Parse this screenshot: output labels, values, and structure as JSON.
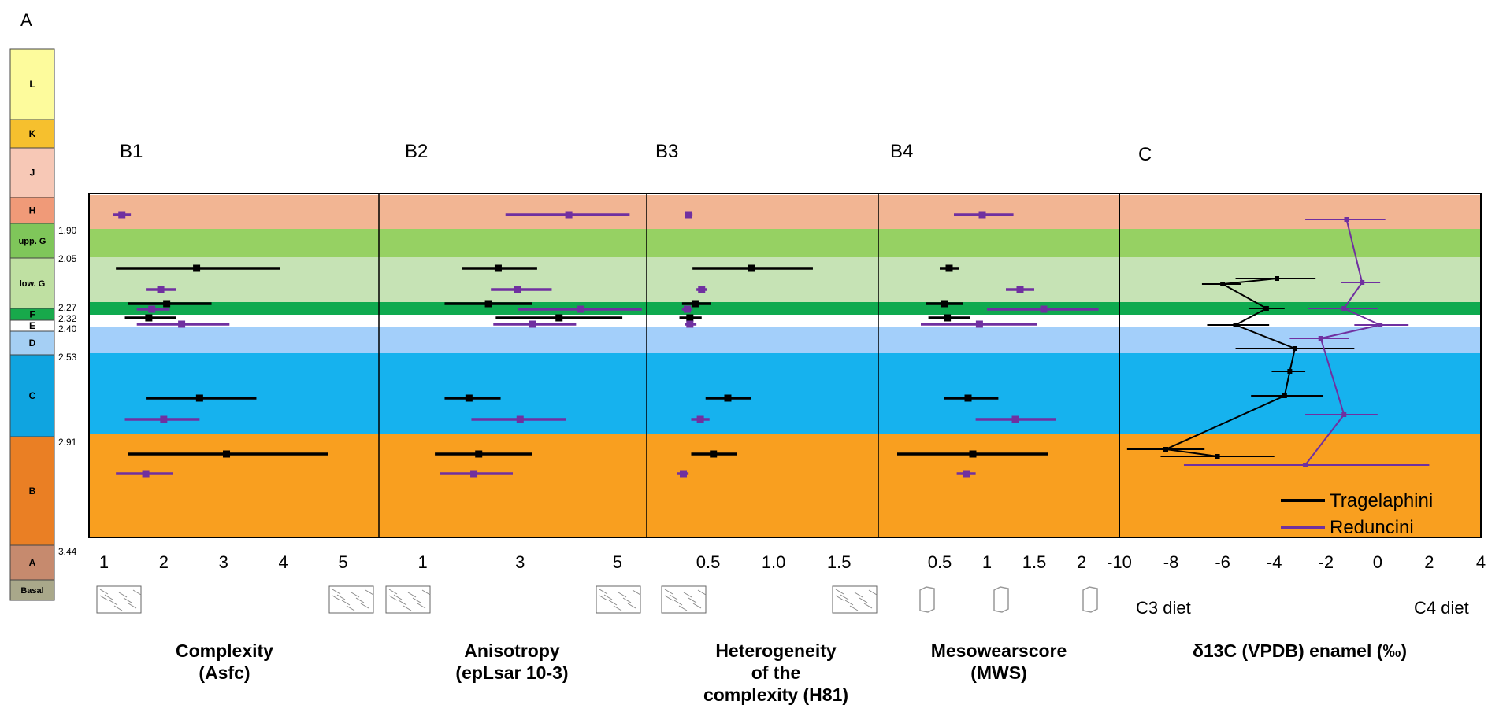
{
  "figure_label": "A",
  "strat_column": [
    {
      "unit": "L",
      "color": "#fdfb9c"
    },
    {
      "unit": "K",
      "color": "#f6c02e"
    },
    {
      "unit": "J",
      "color": "#f7c8b6"
    },
    {
      "unit": "H",
      "color": "#f09a78"
    },
    {
      "unit": "upp. G",
      "color": "#7fc65a"
    },
    {
      "unit": "low. G",
      "color": "#bfe0a2"
    },
    {
      "unit": "F",
      "color": "#18a94b"
    },
    {
      "unit": "E",
      "color": "#ffffff"
    },
    {
      "unit": "D",
      "color": "#a5cff4"
    },
    {
      "unit": "C",
      "color": "#0fa4e0"
    },
    {
      "unit": "B",
      "color": "#ea7f24"
    },
    {
      "unit": "A",
      "color": "#c68a6e"
    },
    {
      "unit": "Basal",
      "color": "#a9a88a"
    }
  ],
  "age_labels": [
    "1.90",
    "2.05",
    "2.27",
    "2.32",
    "2.40",
    "2.53",
    "2.91",
    "3.44"
  ],
  "bands": [
    {
      "member": "H",
      "color": "#f2b593"
    },
    {
      "member": "upp. G",
      "color": "#96d163"
    },
    {
      "member": "low. G",
      "color": "#c6e3b5"
    },
    {
      "member": "F",
      "color": "#0faa4f"
    },
    {
      "member": "E",
      "color": "#ffffff"
    },
    {
      "member": "D",
      "color": "#a3cffa"
    },
    {
      "member": "C",
      "color": "#16b2ee"
    },
    {
      "member": "B",
      "color": "#f99f1f"
    }
  ],
  "series_colors": {
    "Tragelaphini": "#000000",
    "Reduncini": "#7030a0"
  },
  "legend": {
    "items": [
      "Tragelaphini",
      "Reduncini"
    ]
  },
  "chart_data": [
    {
      "panel": "B1",
      "type": "scatter",
      "xlabel": "Complexity\n(Asfc)",
      "xticks": [
        "1",
        "2",
        "3",
        "4",
        "5"
      ],
      "xlim": [
        0.75,
        5.6
      ],
      "series": [
        {
          "name": "Tragelaphini",
          "points": [
            {
              "member": "low. G",
              "x": 2.55,
              "xmin": 1.2,
              "xmax": 3.95
            },
            {
              "member": "F",
              "x": 2.05,
              "xmin": 1.4,
              "xmax": 2.8
            },
            {
              "member": "E",
              "x": 1.75,
              "xmin": 1.35,
              "xmax": 2.2
            },
            {
              "member": "C",
              "x": 2.6,
              "xmin": 1.7,
              "xmax": 3.55
            },
            {
              "member": "B",
              "x": 3.05,
              "xmin": 1.4,
              "xmax": 4.75
            }
          ]
        },
        {
          "name": "Reduncini",
          "points": [
            {
              "member": "H",
              "x": 1.3,
              "xmin": 1.15,
              "xmax": 1.45
            },
            {
              "member": "low. G",
              "x": 1.95,
              "xmin": 1.7,
              "xmax": 2.2
            },
            {
              "member": "F",
              "x": 1.8,
              "xmin": 1.55,
              "xmax": 2.1
            },
            {
              "member": "E",
              "x": 2.3,
              "xmin": 1.55,
              "xmax": 3.1
            },
            {
              "member": "C",
              "x": 2.0,
              "xmin": 1.35,
              "xmax": 2.6
            },
            {
              "member": "B",
              "x": 1.7,
              "xmin": 1.2,
              "xmax": 2.15
            }
          ]
        }
      ]
    },
    {
      "panel": "B2",
      "type": "scatter",
      "xlabel": "Anisotropy\n(epLsar 10-3)",
      "xticks": [
        "1",
        "3",
        "5"
      ],
      "xlim": [
        0.1,
        5.6
      ],
      "series": [
        {
          "name": "Tragelaphini",
          "points": [
            {
              "member": "low. G",
              "x": 2.55,
              "xmin": 1.8,
              "xmax": 3.35
            },
            {
              "member": "F",
              "x": 2.35,
              "xmin": 1.45,
              "xmax": 3.25
            },
            {
              "member": "E",
              "x": 3.8,
              "xmin": 2.5,
              "xmax": 5.1
            },
            {
              "member": "C",
              "x": 1.95,
              "xmin": 1.45,
              "xmax": 2.6
            },
            {
              "member": "B",
              "x": 2.15,
              "xmin": 1.25,
              "xmax": 3.25
            }
          ]
        },
        {
          "name": "Reduncini",
          "points": [
            {
              "member": "H",
              "x": 4.0,
              "xmin": 2.7,
              "xmax": 5.25
            },
            {
              "member": "low. G",
              "x": 2.95,
              "xmin": 2.4,
              "xmax": 3.65
            },
            {
              "member": "F",
              "x": 4.25,
              "xmin": 2.95,
              "xmax": 5.5
            },
            {
              "member": "E",
              "x": 3.25,
              "xmin": 2.45,
              "xmax": 4.15
            },
            {
              "member": "C",
              "x": 3.0,
              "xmin": 2.0,
              "xmax": 3.95
            },
            {
              "member": "B",
              "x": 2.05,
              "xmin": 1.35,
              "xmax": 2.85
            }
          ]
        }
      ]
    },
    {
      "panel": "B3",
      "type": "scatter",
      "xlabel": "Heterogeneity\nof the\ncomplexity (H81)",
      "xticks": [
        "0.5",
        "1.0",
        "1.5"
      ],
      "xlim": [
        0.03,
        1.8
      ],
      "series": [
        {
          "name": "Tragelaphini",
          "points": [
            {
              "member": "low. G",
              "x": 0.83,
              "xmin": 0.38,
              "xmax": 1.3
            },
            {
              "member": "F",
              "x": 0.4,
              "xmin": 0.3,
              "xmax": 0.52
            },
            {
              "member": "E",
              "x": 0.36,
              "xmin": 0.28,
              "xmax": 0.45
            },
            {
              "member": "C",
              "x": 0.65,
              "xmin": 0.48,
              "xmax": 0.83
            },
            {
              "member": "B",
              "x": 0.54,
              "xmin": 0.37,
              "xmax": 0.72
            }
          ]
        },
        {
          "name": "Reduncini",
          "points": [
            {
              "member": "H",
              "x": 0.35,
              "xmin": 0.32,
              "xmax": 0.38
            },
            {
              "member": "low. G",
              "x": 0.45,
              "xmin": 0.41,
              "xmax": 0.49
            },
            {
              "member": "F",
              "x": 0.34,
              "xmin": 0.3,
              "xmax": 0.38
            },
            {
              "member": "E",
              "x": 0.36,
              "xmin": 0.32,
              "xmax": 0.41
            },
            {
              "member": "C",
              "x": 0.44,
              "xmin": 0.37,
              "xmax": 0.51
            },
            {
              "member": "B",
              "x": 0.31,
              "xmin": 0.26,
              "xmax": 0.35
            }
          ]
        }
      ]
    },
    {
      "panel": "B4",
      "type": "scatter",
      "xlabel": "Mesowearscore\n(MWS)",
      "xticks": [
        "0.5",
        "1",
        "1.5",
        "2"
      ],
      "xlim": [
        -0.15,
        2.4
      ],
      "series": [
        {
          "name": "Tragelaphini",
          "points": [
            {
              "member": "low. G",
              "x": 0.6,
              "xmin": 0.5,
              "xmax": 0.7
            },
            {
              "member": "F",
              "x": 0.55,
              "xmin": 0.35,
              "xmax": 0.75
            },
            {
              "member": "E",
              "x": 0.58,
              "xmin": 0.38,
              "xmax": 0.82
            },
            {
              "member": "C",
              "x": 0.8,
              "xmin": 0.55,
              "xmax": 1.12
            },
            {
              "member": "B",
              "x": 0.85,
              "xmin": 0.05,
              "xmax": 1.65
            }
          ]
        },
        {
          "name": "Reduncini",
          "points": [
            {
              "member": "H",
              "x": 0.95,
              "xmin": 0.65,
              "xmax": 1.28
            },
            {
              "member": "low. G",
              "x": 1.35,
              "xmin": 1.2,
              "xmax": 1.5
            },
            {
              "member": "F",
              "x": 1.6,
              "xmin": 1.0,
              "xmax": 2.18
            },
            {
              "member": "E",
              "x": 0.92,
              "xmin": 0.3,
              "xmax": 1.53
            },
            {
              "member": "C",
              "x": 1.3,
              "xmin": 0.88,
              "xmax": 1.73
            },
            {
              "member": "B",
              "x": 0.78,
              "xmin": 0.68,
              "xmax": 0.88
            }
          ]
        }
      ]
    },
    {
      "panel": "C",
      "type": "line",
      "xlabel": "δ13C  (VPDB) enamel (‰)",
      "xticks": [
        "-10",
        "-8",
        "-6",
        "-4",
        "-2",
        "0",
        "2",
        "4"
      ],
      "xlim": [
        -10,
        4
      ],
      "x_end_labels": {
        "left": "C3 diet",
        "right": "C4 diet"
      },
      "series": [
        {
          "name": "Tragelaphini",
          "points": [
            {
              "member": "low. G (upper)",
              "x": -3.9,
              "xmin": -5.5,
              "xmax": -2.4
            },
            {
              "member": "low. G (lower)",
              "x": -6.0,
              "xmin": -6.8,
              "xmax": -5.3
            },
            {
              "member": "F",
              "x": -4.3,
              "xmin": -5.0,
              "xmax": -3.6
            },
            {
              "member": "E",
              "x": -5.5,
              "xmin": -6.6,
              "xmax": -4.2
            },
            {
              "member": "D",
              "x": -3.2,
              "xmin": -5.5,
              "xmax": -0.9
            },
            {
              "member": "C (upper)",
              "x": -3.4,
              "xmin": -4.1,
              "xmax": -2.8
            },
            {
              "member": "C (lower)",
              "x": -3.6,
              "xmin": -4.9,
              "xmax": -2.1
            },
            {
              "member": "B (upper)",
              "x": -8.2,
              "xmin": -9.7,
              "xmax": -6.7
            },
            {
              "member": "B (lower)",
              "x": -6.2,
              "xmin": -8.4,
              "xmax": -4.0
            }
          ]
        },
        {
          "name": "Reduncini",
          "points": [
            {
              "member": "H/upp. G",
              "x": -1.2,
              "xmin": -2.8,
              "xmax": 0.3
            },
            {
              "member": "low. G",
              "x": -0.6,
              "xmin": -1.4,
              "xmax": 0.1
            },
            {
              "member": "F",
              "x": -1.3,
              "xmin": -2.7,
              "xmax": 0.0
            },
            {
              "member": "E",
              "x": 0.1,
              "xmin": -0.9,
              "xmax": 1.2
            },
            {
              "member": "D",
              "x": -2.2,
              "xmin": -3.4,
              "xmax": -1.1
            },
            {
              "member": "C",
              "x": -1.3,
              "xmin": -2.8,
              "xmax": 0.0
            },
            {
              "member": "B",
              "x": -2.8,
              "xmin": -7.5,
              "xmax": 2.0
            }
          ]
        }
      ]
    }
  ]
}
